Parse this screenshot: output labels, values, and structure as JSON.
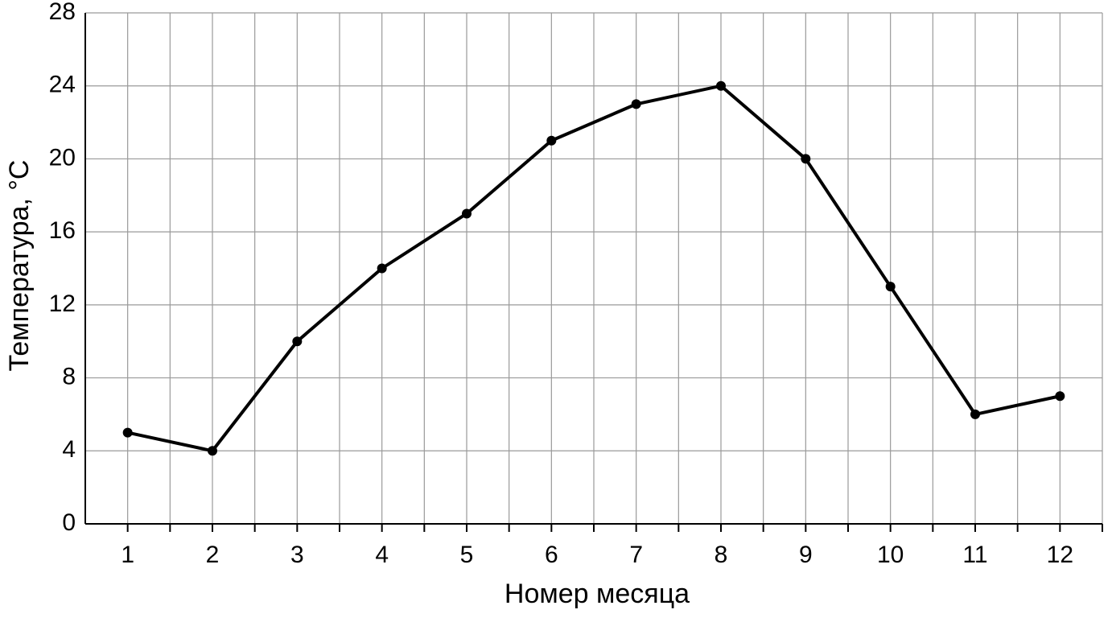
{
  "chart_data": {
    "type": "line",
    "x_label": "Номер месяца",
    "y_label": "Температура, °C",
    "x": [
      1,
      2,
      3,
      4,
      5,
      6,
      7,
      8,
      9,
      10,
      11,
      12
    ],
    "series": [
      {
        "color": "#000000",
        "values": [
          5,
          4,
          10,
          14,
          17,
          21,
          23,
          24,
          20,
          13,
          6,
          7
        ]
      }
    ],
    "xlim": [
      0.5,
      12.5
    ],
    "xticks": [
      1,
      2,
      3,
      4,
      5,
      6,
      7,
      8,
      9,
      10,
      11,
      12
    ],
    "x_minor_ticks": [
      1.5,
      2.5,
      3.5,
      4.5,
      5.5,
      6.5,
      7.5,
      8.5,
      9.5,
      10.5,
      11.5,
      12.5
    ],
    "ylim": [
      0,
      28
    ],
    "yticks": [
      0,
      4,
      8,
      12,
      16,
      20,
      24,
      28
    ],
    "grid": true
  }
}
